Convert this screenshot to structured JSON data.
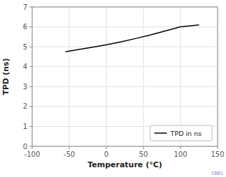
{
  "chart_data": {
    "type": "line",
    "xlabel": "Temperature (°C)",
    "ylabel": "TPD (ns)",
    "x": [
      -55,
      -40,
      -20,
      0,
      20,
      40,
      60,
      80,
      100,
      125
    ],
    "series": [
      {
        "name": "TPD in ns",
        "color": "#000000",
        "values": [
          4.75,
          4.85,
          4.97,
          5.1,
          5.25,
          5.42,
          5.6,
          5.8,
          6.0,
          6.1
        ]
      }
    ],
    "xlim": [
      -100,
      150
    ],
    "ylim": [
      0,
      7
    ],
    "xticks": [
      -100,
      -50,
      0,
      50,
      100,
      150
    ],
    "yticks": [
      0,
      1,
      2,
      3,
      4,
      5,
      6,
      7
    ],
    "grid": true,
    "legend": "lower right",
    "annotations": [
      "C001"
    ]
  }
}
